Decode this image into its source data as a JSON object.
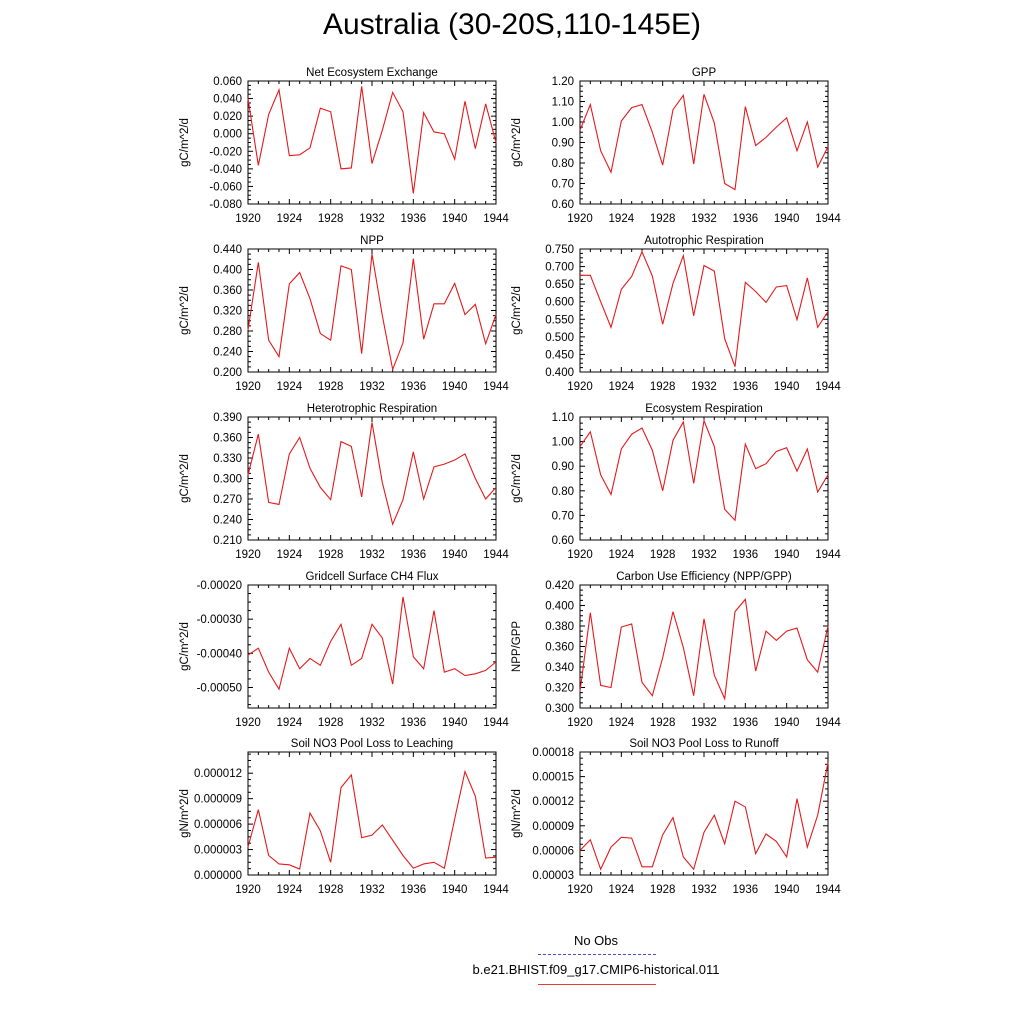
{
  "title": "Australia (30-20S,110-145E)",
  "legend": [
    {
      "label": "No Obs",
      "color": "#4b4bd6",
      "style": "dashed"
    },
    {
      "label": "b.e21.BHIST.f09_g17.CMIP6-historical.011",
      "color": "#e43b3b",
      "style": "solid"
    }
  ],
  "chart_data": [
    {
      "type": "line",
      "title": "Net Ecosystem Exchange",
      "ylabel": "gC/m^2/d",
      "xlim": [
        1920,
        1944
      ],
      "ylim": [
        -0.08,
        0.06
      ],
      "xticks": [
        1920,
        1924,
        1928,
        1932,
        1936,
        1940,
        1944
      ],
      "yticks": [
        "-0.080",
        "-0.060",
        "-0.040",
        "-0.020",
        "0.000",
        "0.020",
        "0.040",
        "0.060"
      ],
      "ytick_values": [
        -0.08,
        -0.06,
        -0.04,
        -0.02,
        0.0,
        0.02,
        0.04,
        0.06
      ],
      "x": [
        1920,
        1921,
        1922,
        1923,
        1924,
        1925,
        1926,
        1927,
        1928,
        1929,
        1930,
        1931,
        1932,
        1933,
        1934,
        1935,
        1936,
        1937,
        1938,
        1939,
        1940,
        1941,
        1942,
        1943,
        1944
      ],
      "values": [
        0.04,
        -0.036,
        0.022,
        0.05,
        -0.025,
        -0.024,
        -0.016,
        0.029,
        0.025,
        -0.04,
        -0.039,
        0.054,
        -0.034,
        0.004,
        0.047,
        0.025,
        -0.068,
        0.024,
        0.002,
        0.0,
        -0.029,
        0.037,
        -0.017,
        0.034,
        -0.01
      ]
    },
    {
      "type": "line",
      "title": "GPP",
      "ylabel": "gC/m^2/d",
      "xlim": [
        1920,
        1944
      ],
      "ylim": [
        0.6,
        1.2
      ],
      "xticks": [
        1920,
        1924,
        1928,
        1932,
        1936,
        1940,
        1944
      ],
      "yticks": [
        "0.60",
        "0.70",
        "0.80",
        "0.90",
        "1.00",
        "1.10",
        "1.20"
      ],
      "ytick_values": [
        0.6,
        0.7,
        0.8,
        0.9,
        1.0,
        1.1,
        1.2
      ],
      "x": [
        1920,
        1921,
        1922,
        1923,
        1924,
        1925,
        1926,
        1927,
        1928,
        1929,
        1930,
        1931,
        1932,
        1933,
        1934,
        1935,
        1936,
        1937,
        1938,
        1939,
        1940,
        1941,
        1942,
        1943,
        1944
      ],
      "values": [
        0.96,
        1.085,
        0.86,
        0.755,
        1.005,
        1.07,
        1.085,
        0.95,
        0.79,
        1.06,
        1.13,
        0.795,
        1.135,
        0.995,
        0.7,
        0.67,
        1.075,
        0.885,
        0.925,
        0.975,
        1.02,
        0.86,
        1.0,
        0.78,
        0.88
      ]
    },
    {
      "type": "line",
      "title": "NPP",
      "ylabel": "gC/m^2/d",
      "xlim": [
        1920,
        1944
      ],
      "ylim": [
        0.2,
        0.44
      ],
      "xticks": [
        1920,
        1924,
        1928,
        1932,
        1936,
        1940,
        1944
      ],
      "yticks": [
        "0.200",
        "0.240",
        "0.280",
        "0.320",
        "0.360",
        "0.400",
        "0.440"
      ],
      "ytick_values": [
        0.2,
        0.24,
        0.28,
        0.32,
        0.36,
        0.4,
        0.44
      ],
      "x": [
        1920,
        1921,
        1922,
        1923,
        1924,
        1925,
        1926,
        1927,
        1928,
        1929,
        1930,
        1931,
        1932,
        1933,
        1934,
        1935,
        1936,
        1937,
        1938,
        1939,
        1940,
        1941,
        1942,
        1943,
        1944
      ],
      "values": [
        0.282,
        0.414,
        0.262,
        0.23,
        0.372,
        0.394,
        0.343,
        0.275,
        0.262,
        0.407,
        0.4,
        0.236,
        0.43,
        0.31,
        0.205,
        0.257,
        0.421,
        0.264,
        0.333,
        0.333,
        0.373,
        0.312,
        0.332,
        0.255,
        0.312
      ]
    },
    {
      "type": "line",
      "title": "Autotrophic Respiration",
      "ylabel": "gC/m^2/d",
      "xlim": [
        1920,
        1944
      ],
      "ylim": [
        0.4,
        0.75
      ],
      "xticks": [
        1920,
        1924,
        1928,
        1932,
        1936,
        1940,
        1944
      ],
      "yticks": [
        "0.400",
        "0.450",
        "0.500",
        "0.550",
        "0.600",
        "0.650",
        "0.700",
        "0.750"
      ],
      "ytick_values": [
        0.4,
        0.45,
        0.5,
        0.55,
        0.6,
        0.65,
        0.7,
        0.75
      ],
      "x": [
        1920,
        1921,
        1922,
        1923,
        1924,
        1925,
        1926,
        1927,
        1928,
        1929,
        1930,
        1931,
        1932,
        1933,
        1934,
        1935,
        1936,
        1937,
        1938,
        1939,
        1940,
        1941,
        1942,
        1943,
        1944
      ],
      "values": [
        0.675,
        0.675,
        0.6,
        0.527,
        0.635,
        0.672,
        0.742,
        0.673,
        0.536,
        0.652,
        0.731,
        0.56,
        0.703,
        0.687,
        0.495,
        0.415,
        0.655,
        0.629,
        0.598,
        0.642,
        0.646,
        0.549,
        0.668,
        0.527,
        0.572
      ]
    },
    {
      "type": "line",
      "title": "Heterotrophic Respiration",
      "ylabel": "gC/m^2/d",
      "xlim": [
        1920,
        1944
      ],
      "ylim": [
        0.21,
        0.39
      ],
      "xticks": [
        1920,
        1924,
        1928,
        1932,
        1936,
        1940,
        1944
      ],
      "yticks": [
        "0.210",
        "0.240",
        "0.270",
        "0.300",
        "0.330",
        "0.360",
        "0.390"
      ],
      "ytick_values": [
        0.21,
        0.24,
        0.27,
        0.3,
        0.33,
        0.36,
        0.39
      ],
      "x": [
        1920,
        1921,
        1922,
        1923,
        1924,
        1925,
        1926,
        1927,
        1928,
        1929,
        1930,
        1931,
        1932,
        1933,
        1934,
        1935,
        1936,
        1937,
        1938,
        1939,
        1940,
        1941,
        1942,
        1943,
        1944
      ],
      "values": [
        0.305,
        0.365,
        0.265,
        0.262,
        0.336,
        0.36,
        0.315,
        0.287,
        0.269,
        0.354,
        0.347,
        0.273,
        0.382,
        0.294,
        0.233,
        0.269,
        0.339,
        0.27,
        0.317,
        0.321,
        0.327,
        0.336,
        0.3,
        0.27,
        0.287
      ]
    },
    {
      "type": "line",
      "title": "Ecosystem Respiration",
      "ylabel": "gC/m^2/d",
      "xlim": [
        1920,
        1944
      ],
      "ylim": [
        0.6,
        1.1
      ],
      "xticks": [
        1920,
        1924,
        1928,
        1932,
        1936,
        1940,
        1944
      ],
      "yticks": [
        "0.60",
        "0.70",
        "0.80",
        "0.90",
        "1.00",
        "1.10"
      ],
      "ytick_values": [
        0.6,
        0.7,
        0.8,
        0.9,
        1.0,
        1.1
      ],
      "x": [
        1920,
        1921,
        1922,
        1923,
        1924,
        1925,
        1926,
        1927,
        1928,
        1929,
        1930,
        1931,
        1932,
        1933,
        1934,
        1935,
        1936,
        1937,
        1938,
        1939,
        1940,
        1941,
        1942,
        1943,
        1944
      ],
      "values": [
        0.98,
        1.04,
        0.865,
        0.785,
        0.97,
        1.03,
        1.055,
        0.965,
        0.8,
        1.005,
        1.08,
        0.83,
        1.085,
        0.98,
        0.725,
        0.68,
        0.99,
        0.89,
        0.91,
        0.96,
        0.975,
        0.88,
        0.97,
        0.795,
        0.865
      ]
    },
    {
      "type": "line",
      "title": "Gridcell Surface CH4 Flux",
      "ylabel": "gC/m^2/d",
      "xlim": [
        1920,
        1944
      ],
      "ylim": [
        -0.00056,
        -0.0002
      ],
      "xticks": [
        1920,
        1924,
        1928,
        1932,
        1936,
        1940,
        1944
      ],
      "yticks": [
        "-0.00050",
        "-0.00040",
        "-0.00030",
        "-0.00020"
      ],
      "ytick_values": [
        -0.0005,
        -0.0004,
        -0.0003,
        -0.0002
      ],
      "x": [
        1920,
        1921,
        1922,
        1923,
        1924,
        1925,
        1926,
        1927,
        1928,
        1929,
        1930,
        1931,
        1932,
        1933,
        1934,
        1935,
        1936,
        1937,
        1938,
        1939,
        1940,
        1941,
        1942,
        1943,
        1944
      ],
      "values": [
        -0.000405,
        -0.000385,
        -0.000455,
        -0.000505,
        -0.000385,
        -0.000445,
        -0.000415,
        -0.000435,
        -0.000365,
        -0.000315,
        -0.000435,
        -0.000415,
        -0.000315,
        -0.000355,
        -0.00049,
        -0.000235,
        -0.00041,
        -0.000445,
        -0.000275,
        -0.000455,
        -0.000445,
        -0.000465,
        -0.00046,
        -0.00045,
        -0.000425
      ]
    },
    {
      "type": "line",
      "title": "Carbon Use Efficiency (NPP/GPP)",
      "ylabel": "NPP/GPP",
      "xlim": [
        1920,
        1944
      ],
      "ylim": [
        0.3,
        0.42
      ],
      "xticks": [
        1920,
        1924,
        1928,
        1932,
        1936,
        1940,
        1944
      ],
      "yticks": [
        "0.300",
        "0.320",
        "0.340",
        "0.360",
        "0.380",
        "0.400",
        "0.420"
      ],
      "ytick_values": [
        0.3,
        0.32,
        0.34,
        0.36,
        0.38,
        0.4,
        0.42
      ],
      "x": [
        1920,
        1921,
        1922,
        1923,
        1924,
        1925,
        1926,
        1927,
        1928,
        1929,
        1930,
        1931,
        1932,
        1933,
        1934,
        1935,
        1936,
        1937,
        1938,
        1939,
        1940,
        1941,
        1942,
        1943,
        1944
      ],
      "values": [
        0.316,
        0.393,
        0.322,
        0.32,
        0.379,
        0.382,
        0.325,
        0.312,
        0.349,
        0.394,
        0.359,
        0.312,
        0.387,
        0.332,
        0.309,
        0.394,
        0.406,
        0.336,
        0.375,
        0.366,
        0.375,
        0.378,
        0.347,
        0.335,
        0.38
      ]
    },
    {
      "type": "line",
      "title": "Soil NO3 Pool Loss to Leaching",
      "ylabel": "gN/m^2/d",
      "xlim": [
        1920,
        1944
      ],
      "ylim": [
        0.0,
        1.45e-05
      ],
      "xticks": [
        1920,
        1924,
        1928,
        1932,
        1936,
        1940,
        1944
      ],
      "yticks": [
        "0.000000",
        "0.000003",
        "0.000006",
        "0.000009",
        "0.000012"
      ],
      "ytick_values": [
        0.0,
        3e-06,
        6e-06,
        9e-06,
        1.2e-05
      ],
      "x": [
        1920,
        1921,
        1922,
        1923,
        1924,
        1925,
        1926,
        1927,
        1928,
        1929,
        1930,
        1931,
        1932,
        1933,
        1934,
        1935,
        1936,
        1937,
        1938,
        1939,
        1940,
        1941,
        1942,
        1943,
        1944
      ],
      "values": [
        3.3e-06,
        7.7e-06,
        2.3e-06,
        1.3e-06,
        1.2e-06,
        7e-07,
        7.3e-06,
        5.2e-06,
        1.5e-06,
        1.03e-05,
        1.18e-05,
        4.4e-06,
        4.7e-06,
        5.9e-06,
        4.1e-06,
        2.3e-06,
        8e-07,
        1.3e-06,
        1.5e-06,
        8e-07,
        6.6e-06,
        1.22e-05,
        9.3e-06,
        2e-06,
        2.1e-06
      ]
    },
    {
      "type": "line",
      "title": "Soil NO3 Pool Loss to Runoff",
      "ylabel": "gN/m^2/d",
      "xlim": [
        1920,
        1944
      ],
      "ylim": [
        3e-05,
        0.00018
      ],
      "xticks": [
        1920,
        1924,
        1928,
        1932,
        1936,
        1940,
        1944
      ],
      "yticks": [
        "0.00003",
        "0.00006",
        "0.00009",
        "0.00012",
        "0.00015",
        "0.00018"
      ],
      "ytick_values": [
        3e-05,
        6e-05,
        9e-05,
        0.00012,
        0.00015,
        0.00018
      ],
      "x": [
        1920,
        1921,
        1922,
        1923,
        1924,
        1925,
        1926,
        1927,
        1928,
        1929,
        1930,
        1931,
        1932,
        1933,
        1934,
        1935,
        1936,
        1937,
        1938,
        1939,
        1940,
        1941,
        1942,
        1943,
        1944
      ],
      "values": [
        6e-05,
        7.3e-05,
        3.7e-05,
        6.4e-05,
        7.6e-05,
        7.5e-05,
        4e-05,
        4e-05,
        7.9e-05,
        0.0001,
        5.2e-05,
        3.7e-05,
        8.2e-05,
        0.000103,
        6.8e-05,
        0.00012,
        0.000113,
        5.6e-05,
        8e-05,
        7.1e-05,
        5.2e-05,
        0.000123,
        6.4e-05,
        0.000103,
        0.000167
      ]
    }
  ]
}
